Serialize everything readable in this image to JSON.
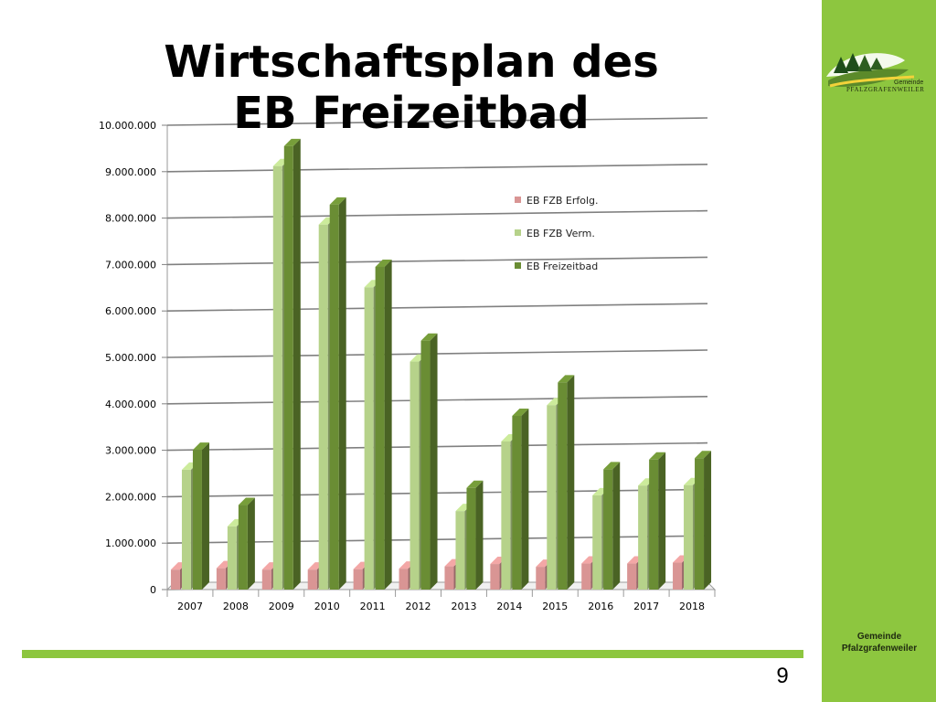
{
  "slide": {
    "title_line1": "Wirtschaftsplan des",
    "title_line2": "EB Freizeitbad",
    "page_number": "9",
    "sidebar_line1": "Gemeinde",
    "sidebar_line2": "Pfalzgrafenweiler",
    "logo_text_top": "Gemeinde",
    "logo_text_bottom": "PFALZGRAFENWEILER",
    "accent_color": "#8dc63f"
  },
  "chart_data": {
    "type": "bar",
    "title": "",
    "xlabel": "",
    "ylabel": "",
    "ylim": [
      0,
      10000000
    ],
    "y_ticks": [
      0,
      1000000,
      2000000,
      3000000,
      4000000,
      5000000,
      6000000,
      7000000,
      8000000,
      9000000,
      10000000
    ],
    "y_tick_labels": [
      "0",
      "1.000.000",
      "2.000.000",
      "3.000.000",
      "4.000.000",
      "5.000.000",
      "6.000.000",
      "7.000.000",
      "8.000.000",
      "9.000.000",
      "10.000.000"
    ],
    "grid": true,
    "legend_position": "top-right",
    "categories": [
      "2007",
      "2008",
      "2009",
      "2010",
      "2011",
      "2012",
      "2013",
      "2014",
      "2015",
      "2016",
      "2017",
      "2018"
    ],
    "series": [
      {
        "name": "EB FZB Erfolg.",
        "color": "#d99594",
        "values": [
          430000,
          460000,
          430000,
          430000,
          440000,
          450000,
          500000,
          550000,
          490000,
          560000,
          560000,
          580000
        ]
      },
      {
        "name": "EB FZB Verm.",
        "color": "#b6d28a",
        "values": [
          2580000,
          1360000,
          9120000,
          7860000,
          6510000,
          4910000,
          1690000,
          3190000,
          3970000,
          2030000,
          2240000,
          2250000
        ]
      },
      {
        "name": "EB Freizeitbad",
        "color": "#6a8d34",
        "values": [
          3010000,
          1820000,
          9550000,
          8290000,
          6950000,
          5360000,
          2190000,
          3740000,
          4460000,
          2590000,
          2800000,
          2830000
        ]
      }
    ]
  }
}
